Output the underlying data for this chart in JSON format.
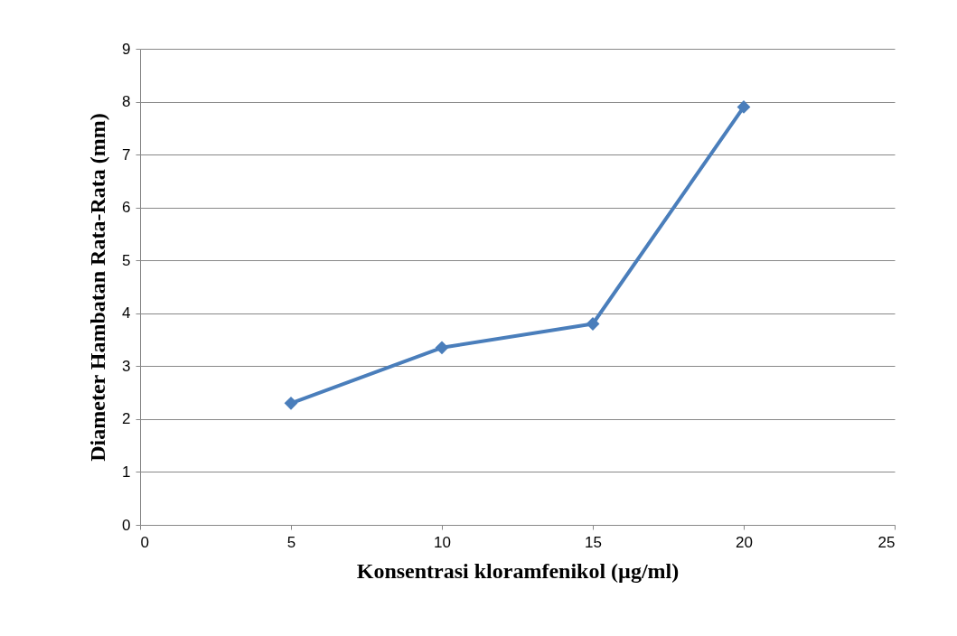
{
  "chart_data": {
    "type": "line",
    "xlabel": "Konsentrasi kloramfenikol (µg/ml)",
    "ylabel": "Diameter Hambatan Rata-Rata (mm)",
    "x": [
      5,
      10,
      15,
      20
    ],
    "series": [
      {
        "color": "#4a7ebb",
        "values": [
          2.3,
          3.35,
          3.8,
          7.9
        ]
      }
    ],
    "xlim": [
      0,
      25
    ],
    "xticks": [
      0,
      5,
      10,
      15,
      20,
      25
    ],
    "ylim": [
      0,
      9
    ],
    "yticks": [
      0,
      1,
      2,
      3,
      4,
      5,
      6,
      7,
      8,
      9
    ],
    "grid": "y",
    "marker": "diamond",
    "line_style": "solid"
  }
}
